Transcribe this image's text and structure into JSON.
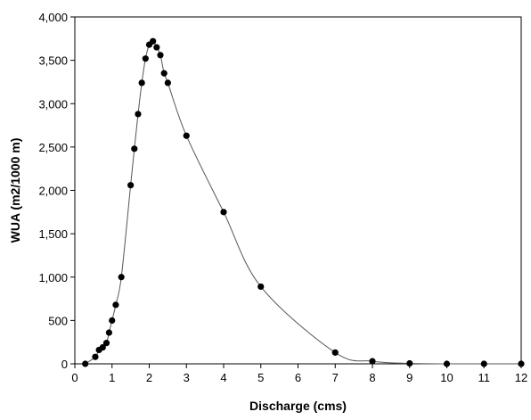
{
  "chart_data": {
    "type": "scatter",
    "title": "",
    "xlabel": "Discharge (cms)",
    "ylabel": "WUA (m2/1000 m)",
    "xlim": [
      0,
      12
    ],
    "ylim": [
      0,
      4000
    ],
    "x_ticks": [
      0,
      1,
      2,
      3,
      4,
      5,
      6,
      7,
      8,
      9,
      10,
      11,
      12
    ],
    "y_ticks": [
      0,
      500,
      1000,
      1500,
      2000,
      2500,
      3000,
      3500,
      4000
    ],
    "y_tick_labels": [
      "0",
      "500",
      "1,000",
      "1,500",
      "2,000",
      "2,500",
      "3,000",
      "3,500",
      "4,000"
    ],
    "grid": false,
    "legend": "none",
    "colors": {
      "points": "#000000",
      "line": "#555555"
    },
    "series": [
      {
        "points": [
          {
            "x": 0.28,
            "y": 0
          },
          {
            "x": 0.55,
            "y": 80
          },
          {
            "x": 0.65,
            "y": 160
          },
          {
            "x": 0.75,
            "y": 190
          },
          {
            "x": 0.85,
            "y": 240
          },
          {
            "x": 0.92,
            "y": 360
          },
          {
            "x": 1.0,
            "y": 500
          },
          {
            "x": 1.1,
            "y": 680
          },
          {
            "x": 1.25,
            "y": 1000
          },
          {
            "x": 1.5,
            "y": 2060
          },
          {
            "x": 1.6,
            "y": 2480
          },
          {
            "x": 1.7,
            "y": 2880
          },
          {
            "x": 1.8,
            "y": 3240
          },
          {
            "x": 1.9,
            "y": 3520
          },
          {
            "x": 2.0,
            "y": 3680
          },
          {
            "x": 2.1,
            "y": 3720
          },
          {
            "x": 2.2,
            "y": 3650
          },
          {
            "x": 2.3,
            "y": 3560
          },
          {
            "x": 2.4,
            "y": 3350
          },
          {
            "x": 2.5,
            "y": 3240
          },
          {
            "x": 3.0,
            "y": 2630
          },
          {
            "x": 4.0,
            "y": 1750
          },
          {
            "x": 5.0,
            "y": 890
          },
          {
            "x": 7.0,
            "y": 130
          },
          {
            "x": 8.0,
            "y": 30
          },
          {
            "x": 9.0,
            "y": 5
          },
          {
            "x": 10.0,
            "y": 0
          },
          {
            "x": 11.0,
            "y": 0
          },
          {
            "x": 12.0,
            "y": 0
          }
        ]
      }
    ]
  }
}
